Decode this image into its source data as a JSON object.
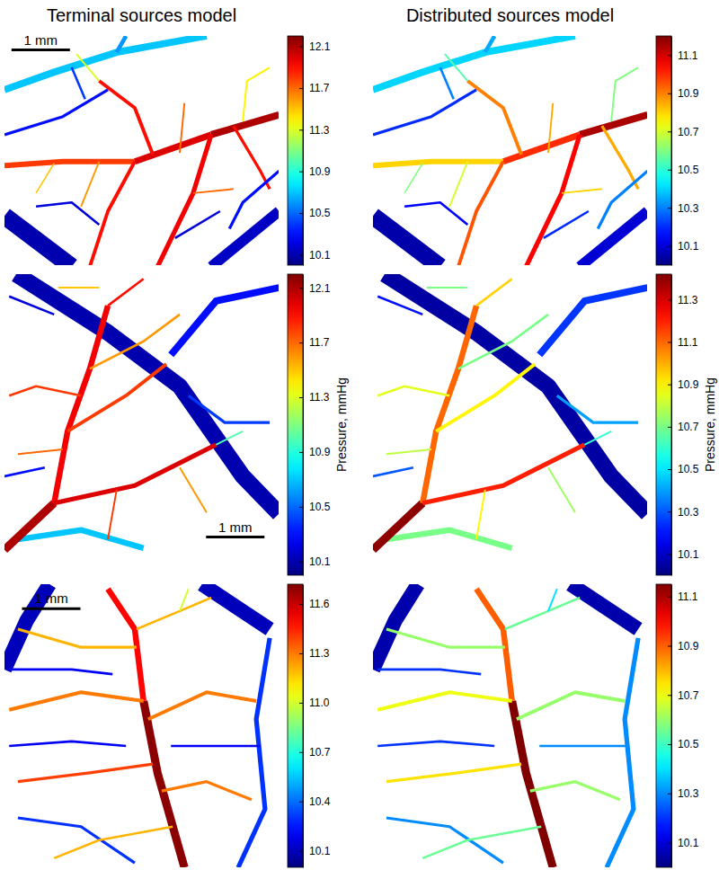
{
  "column_titles": [
    "Terminal sources model",
    "Distributed sources model"
  ],
  "chart_data": [
    {
      "type": "network",
      "scale_bar": {
        "length": 1,
        "label": "1 mm"
      },
      "vessels": {
        "x": [
          [
            4.7,
            3.54
          ],
          [
            3.54,
            2.23
          ],
          [
            2.23,
            1.0,
            0
          ],
          [
            3.54,
            3.23,
            2.62
          ],
          [
            2.54,
            2.23,
            1.62
          ],
          [
            2.23,
            1.77,
            1.46
          ],
          [
            3.92,
            4.38,
            4.54
          ],
          [
            0,
            0.85,
            1.92,
            3.46
          ],
          [
            1.92,
            2.08
          ],
          [
            0,
            1.15
          ],
          [
            3.54,
            4.7
          ],
          [
            4.7,
            4.08,
            3.85
          ],
          [
            0,
            1.0,
            1.77
          ],
          [
            0.54,
            1.15,
            1.62
          ],
          [
            1.15,
            1.38
          ],
          [
            2.92,
            3.69
          ],
          [
            3.0,
            3.08
          ],
          [
            1.62,
            1.31
          ],
          [
            0.85,
            0.54
          ],
          [
            3.23,
            3.92
          ],
          [
            1.62,
            1.23
          ],
          [
            4.08,
            4.15,
            4.54
          ]
        ],
        "y": [
          [
            1.35,
            1.69
          ],
          [
            1.69,
            2.15
          ],
          [
            2.15,
            2.15,
            2.22
          ],
          [
            1.69,
            2.69,
            3.95
          ],
          [
            2.03,
            1.23,
            0.77
          ],
          [
            2.15,
            3.0,
            3.95
          ],
          [
            1.54,
            2.31,
            2.62
          ],
          [
            0.92,
            0.62,
            0.28,
            0
          ],
          [
            0.28,
            0
          ],
          [
            3.08,
            3.95
          ],
          [
            3.95,
            3.0
          ],
          [
            2.31,
            2.85,
            3.3
          ],
          [
            1.69,
            1.38,
            0.92
          ],
          [
            2.92,
            2.85,
            3.23
          ],
          [
            0.54,
            1.08
          ],
          [
            3.46,
            3.0
          ],
          [
            2.0,
            1.15
          ],
          [
            2.15,
            2.92
          ],
          [
            2.18,
            2.69
          ],
          [
            2.69,
            2.62
          ],
          [
            0.77,
            0.31
          ],
          [
            1.46,
            0.77,
            0.54
          ]
        ],
        "diameter": [
          0.12,
          0.11,
          0.09,
          0.08,
          0.06,
          0.06,
          0.05,
          0.12,
          0.07,
          0.3,
          0.18,
          0.05,
          0.05,
          0.04,
          0.04,
          0.04,
          0.03,
          0.03,
          0.025,
          0.03,
          0.03,
          0.03
        ]
      },
      "panels": [
        {
          "pressure": [
            12.1,
            12.0,
            11.8,
            11.95,
            11.9,
            11.9,
            11.9,
            10.7,
            10.6,
            10.1,
            10.15,
            10.3,
            10.3,
            10.2,
            10.4,
            10.2,
            11.7,
            11.6,
            11.5,
            11.7,
            11.3,
            11.4
          ],
          "colorbar": {
            "range": [
              10.0,
              12.2
            ],
            "ticks": [
              10.1,
              10.5,
              10.9,
              11.3,
              11.7,
              12.1
            ]
          }
        },
        {
          "pressure": [
            11.15,
            11.0,
            10.8,
            11.05,
            10.9,
            10.95,
            10.85,
            10.4,
            10.35,
            10.05,
            10.1,
            10.3,
            10.2,
            10.15,
            10.3,
            10.2,
            10.85,
            10.7,
            10.6,
            10.8,
            10.55,
            10.6
          ],
          "colorbar": {
            "range": [
              10.0,
              11.2
            ],
            "ticks": [
              10.1,
              10.3,
              10.5,
              10.7,
              10.9,
              11.1
            ]
          }
        }
      ]
    },
    {
      "type": "network",
      "scale_bar": {
        "length": 1,
        "label": "1 mm"
      },
      "vessels": {
        "x": [
          [
            0.2,
            1.77,
            3.0,
            4.08,
            4.7
          ],
          [
            2.85,
            3.62,
            4.7
          ],
          [
            0.23,
            1.31,
            2.38
          ],
          [
            3.15,
            3.77,
            4.54
          ],
          [
            0.08,
            0.85
          ],
          [
            0,
            0.69
          ],
          [
            0,
            0.85
          ],
          [
            0.85,
            1.08,
            1.46,
            1.77
          ],
          [
            0.85,
            2.23,
            3.62
          ],
          [
            1.08,
            2.08,
            2.77
          ],
          [
            1.77,
            2.38
          ],
          [
            1.46,
            2.38,
            3.0
          ],
          [
            1.31,
            0.54,
            0.08
          ],
          [
            1.0,
            0.23
          ],
          [
            1.92,
            1.77
          ],
          [
            3.62,
            4.08
          ],
          [
            3.0,
            3.46
          ],
          [
            1.62,
            0.92
          ]
        ],
        "y": [
          [
            0,
            1.0,
            1.92,
            3.46,
            4.1
          ],
          [
            1.38,
            0.46,
            0.23
          ],
          [
            4.54,
            4.38,
            4.69
          ],
          [
            2.08,
            2.54,
            2.54
          ],
          [
            0.38,
            0.69
          ],
          [
            3.46,
            3.31
          ],
          [
            4.72,
            3.92
          ],
          [
            3.92,
            2.69,
            1.62,
            0.54
          ],
          [
            3.92,
            3.62,
            2.92
          ],
          [
            2.69,
            2.08,
            1.54
          ],
          [
            0.54,
            0.08
          ],
          [
            1.62,
            1.15,
            0.69
          ],
          [
            2.08,
            1.92,
            2.08
          ],
          [
            3.0,
            3.08
          ],
          [
            3.69,
            4.54
          ],
          [
            2.92,
            2.69
          ],
          [
            3.31,
            4.08
          ],
          [
            0.23,
            0.23
          ]
        ],
        "diameter": [
          0.28,
          0.12,
          0.1,
          0.05,
          0.04,
          0.04,
          0.14,
          0.1,
          0.08,
          0.06,
          0.04,
          0.04,
          0.04,
          0.03,
          0.03,
          0.03,
          0.03,
          0.03
        ]
      },
      "panels": [
        {
          "pressure": [
            10.1,
            10.3,
            10.7,
            10.4,
            10.2,
            10.3,
            12.1,
            11.95,
            12.0,
            11.8,
            11.9,
            11.6,
            11.8,
            11.7,
            11.8,
            11.0,
            11.6,
            11.5
          ],
          "colorbar": {
            "range": [
              10.0,
              12.2
            ],
            "ticks": [
              10.1,
              10.5,
              10.9,
              11.3,
              11.7,
              12.1
            ],
            "label": "Pressure, mmHg"
          }
        },
        {
          "pressure": [
            10.05,
            10.25,
            10.7,
            10.4,
            10.2,
            10.3,
            11.4,
            11.1,
            11.2,
            10.9,
            10.95,
            10.7,
            10.85,
            10.8,
            10.9,
            10.6,
            10.75,
            10.7
          ],
          "colorbar": {
            "range": [
              10.0,
              11.42
            ],
            "ticks": [
              10.1,
              10.3,
              10.5,
              10.7,
              10.9,
              11.1,
              11.3
            ],
            "label": "Pressure, mmHg"
          }
        }
      ]
    },
    {
      "type": "network",
      "scale_bar": {
        "length": 1,
        "label": "1 mm"
      },
      "vessels": {
        "x": [
          [
            0,
            0.38,
            0.77
          ],
          [
            3.38,
            4.54
          ],
          [
            4.54,
            4.31,
            4.46,
            4.0
          ],
          [
            0.08,
            1.15,
            1.85
          ],
          [
            0.08,
            1.15,
            2.08
          ],
          [
            0.23,
            1.31,
            2.23
          ],
          [
            4.38,
            3.46,
            2.85
          ],
          [
            3.08,
            2.62,
            2.38
          ],
          [
            2.38,
            2.23,
            1.77
          ],
          [
            2.38,
            1.31,
            0.08
          ],
          [
            2.26,
            1.31,
            0.23
          ],
          [
            2.46,
            3.46,
            4.31
          ],
          [
            2.26,
            3.0,
            3.54
          ],
          [
            2.54,
            1.46,
            0.23
          ],
          [
            2.69,
            3.46,
            4.23
          ],
          [
            2.88,
            1.62,
            0.85
          ],
          [
            3.0,
            3.15
          ]
        ],
        "y": [
          [
            1.46,
            0.62,
            0
          ],
          [
            0,
            0.77
          ],
          [
            0.92,
            2.31,
            3.85,
            4.85
          ],
          [
            1.46,
            1.46,
            1.54
          ],
          [
            2.77,
            2.69,
            2.77
          ],
          [
            4.0,
            4.15,
            4.77
          ],
          [
            2.77,
            2.77,
            2.77
          ],
          [
            4.85,
            3.23,
            2.0
          ],
          [
            2.0,
            0.77,
            0.08
          ],
          [
            2.0,
            1.85,
            2.15
          ],
          [
            1.08,
            1.08,
            0.77
          ],
          [
            2.31,
            1.85,
            2.0
          ],
          [
            0.77,
            0.46,
            0.23
          ],
          [
            3.08,
            3.23,
            3.38
          ],
          [
            3.54,
            3.38,
            3.69
          ],
          [
            4.15,
            4.38,
            4.69
          ],
          [
            0.46,
            0.08
          ]
        ],
        "diameter": [
          0.25,
          0.25,
          0.08,
          0.04,
          0.04,
          0.05,
          0.04,
          0.14,
          0.1,
          0.06,
          0.05,
          0.06,
          0.04,
          0.05,
          0.05,
          0.04,
          0.03
        ]
      },
      "panels": [
        {
          "pressure": [
            10.1,
            10.1,
            10.3,
            10.2,
            10.2,
            10.3,
            10.2,
            11.7,
            11.5,
            11.3,
            11.2,
            11.3,
            11.2,
            11.4,
            11.3,
            11.2,
            11.0
          ],
          "colorbar": {
            "range": [
              10.0,
              11.72
            ],
            "ticks": [
              10.1,
              10.4,
              10.7,
              {
                "value": 11,
                "label": "11.0"
              },
              11.3,
              11.6
            ]
          }
        },
        {
          "pressure": [
            10.05,
            10.05,
            10.3,
            10.2,
            10.2,
            10.3,
            10.3,
            11.15,
            10.9,
            10.7,
            10.6,
            10.6,
            10.55,
            10.75,
            10.6,
            10.55,
            10.4
          ],
          "colorbar": {
            "range": [
              10.0,
              11.15
            ],
            "ticks": [
              10.1,
              10.3,
              10.5,
              10.7,
              10.9,
              11.1
            ]
          }
        }
      ]
    }
  ]
}
